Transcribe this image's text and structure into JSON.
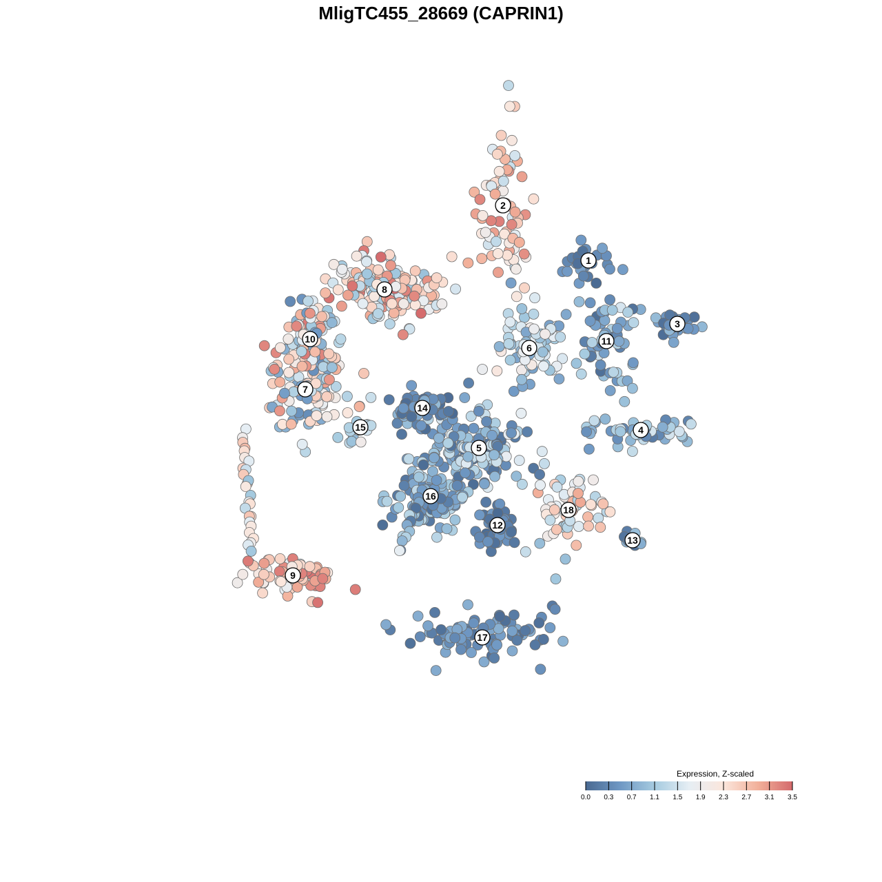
{
  "chart_data": {
    "type": "scatter",
    "title": "MligTC455_28669 (CAPRIN1)",
    "xlabel": "",
    "ylabel": "",
    "xlim": [
      0,
      100
    ],
    "ylim": [
      0,
      100
    ],
    "grid": false,
    "legend_placement": "bottom-right",
    "colorbar": {
      "title": "Expression, Z-scaled",
      "min": 0.0,
      "max": 3.5,
      "ticks": [
        "0.0",
        "0.3",
        "0.7",
        "1.1",
        "1.5",
        "1.9",
        "2.3",
        "2.7",
        "3.1",
        "3.5"
      ],
      "colors": [
        "#4a6a92",
        "#6f98c4",
        "#a6cbe0",
        "#e6eef4",
        "#fbe6dc",
        "#f2b09a",
        "#d46a6c"
      ]
    },
    "clusters": [
      {
        "label": "1",
        "x": 70.4,
        "y": 72.2,
        "spread": [
          3.0,
          3.0
        ],
        "n": 30,
        "expr": [
          0.0,
          0.7
        ]
      },
      {
        "label": "2",
        "x": 58.0,
        "y": 80.2,
        "spread": [
          3.2,
          10.0
        ],
        "n": 70,
        "expr": [
          1.3,
          3.4
        ]
      },
      {
        "label": "3",
        "x": 83.3,
        "y": 63.0,
        "spread": [
          3.0,
          2.2
        ],
        "n": 28,
        "expr": [
          0.0,
          1.0
        ]
      },
      {
        "label": "4",
        "x": 78.0,
        "y": 47.6,
        "spread": [
          8.0,
          2.0
        ],
        "n": 45,
        "expr": [
          0.2,
          1.6
        ]
      },
      {
        "label": "5",
        "x": 54.5,
        "y": 45.0,
        "spread": [
          6.0,
          4.0
        ],
        "n": 150,
        "expr": [
          0.0,
          1.8
        ]
      },
      {
        "label": "6",
        "x": 61.8,
        "y": 59.5,
        "spread": [
          4.5,
          4.5
        ],
        "n": 75,
        "expr": [
          0.6,
          2.3
        ]
      },
      {
        "label": "7",
        "x": 29.3,
        "y": 53.5,
        "spread": [
          5.0,
          5.5
        ],
        "n": 90,
        "expr": [
          0.4,
          3.2
        ]
      },
      {
        "label": "8",
        "x": 40.8,
        "y": 68.0,
        "spread": [
          6.5,
          4.0
        ],
        "n": 160,
        "expr": [
          1.0,
          3.5
        ]
      },
      {
        "label": "9",
        "x": 27.5,
        "y": 26.5,
        "spread": [
          6.5,
          2.5
        ],
        "n": 60,
        "expr": [
          1.6,
          3.5
        ]
      },
      {
        "label": "10",
        "x": 30.0,
        "y": 60.8,
        "spread": [
          4.0,
          5.5
        ],
        "n": 90,
        "expr": [
          0.4,
          3.4
        ]
      },
      {
        "label": "11",
        "x": 73.0,
        "y": 60.5,
        "spread": [
          4.0,
          6.0
        ],
        "n": 65,
        "expr": [
          0.0,
          1.6
        ]
      },
      {
        "label": "12",
        "x": 57.2,
        "y": 33.8,
        "spread": [
          2.5,
          3.0
        ],
        "n": 45,
        "expr": [
          0.0,
          0.6
        ]
      },
      {
        "label": "13",
        "x": 76.8,
        "y": 31.6,
        "spread": [
          1.5,
          1.0
        ],
        "n": 10,
        "expr": [
          0.0,
          1.2
        ]
      },
      {
        "label": "14",
        "x": 46.3,
        "y": 50.8,
        "spread": [
          4.5,
          2.5
        ],
        "n": 55,
        "expr": [
          0.0,
          1.0
        ]
      },
      {
        "label": "15",
        "x": 37.3,
        "y": 48.0,
        "spread": [
          1.5,
          3.0
        ],
        "n": 16,
        "expr": [
          0.8,
          3.0
        ]
      },
      {
        "label": "16",
        "x": 47.5,
        "y": 38.0,
        "spread": [
          5.0,
          4.0
        ],
        "n": 110,
        "expr": [
          0.0,
          1.4
        ]
      },
      {
        "label": "17",
        "x": 55.0,
        "y": 17.5,
        "spread": [
          10.0,
          3.0
        ],
        "n": 85,
        "expr": [
          0.0,
          0.9
        ]
      },
      {
        "label": "18",
        "x": 67.5,
        "y": 36.0,
        "spread": [
          3.5,
          5.5
        ],
        "n": 60,
        "expr": [
          1.0,
          3.0
        ]
      }
    ],
    "arms": [
      {
        "n": 26,
        "y_from": 47.2,
        "y_to": 30.0,
        "x_from": 20.4,
        "x_to": 21.5,
        "expr": [
          1.0,
          2.8
        ]
      },
      {
        "n": 16,
        "y_from": 39.0,
        "y_to": 30.0,
        "x_from": 46.0,
        "x_to": 43.0,
        "expr": [
          0.0,
          1.8
        ]
      }
    ]
  }
}
